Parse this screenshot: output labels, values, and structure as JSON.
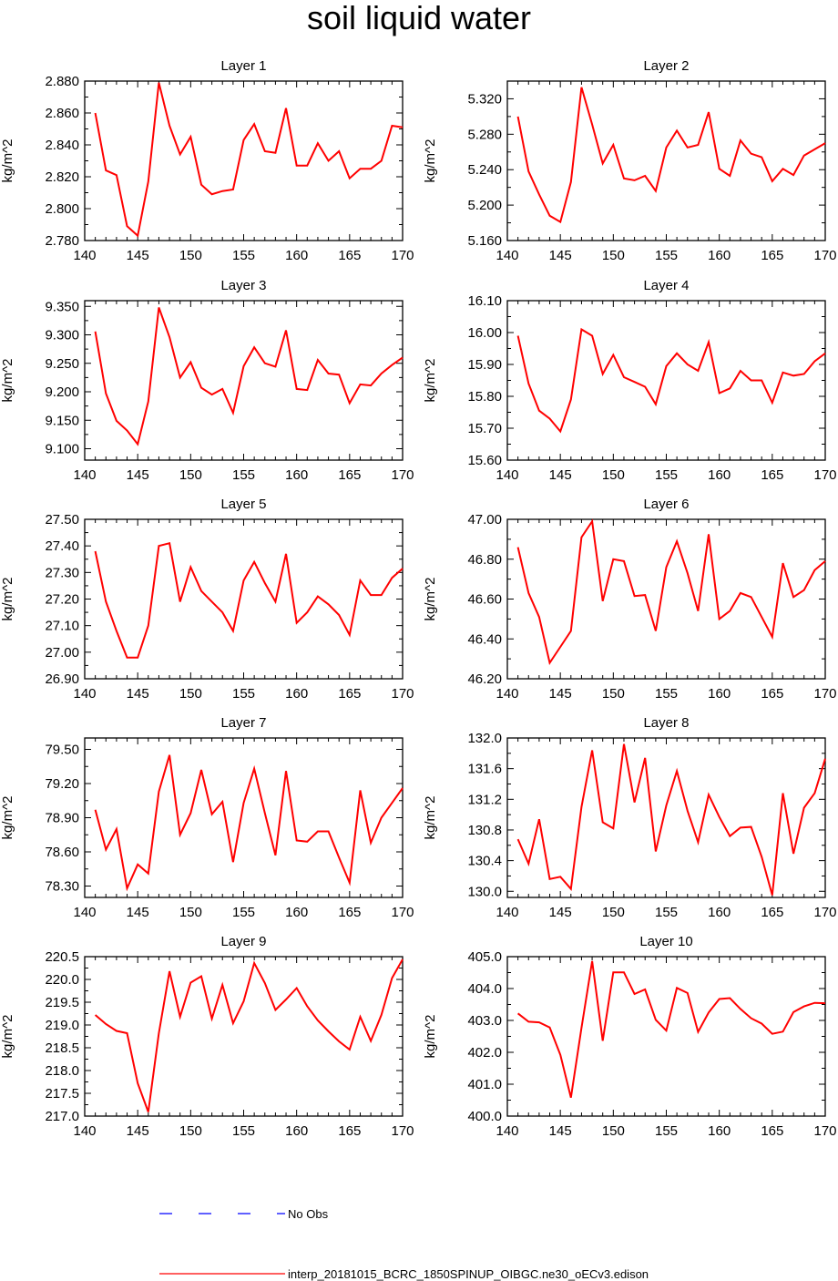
{
  "title": "soil liquid water",
  "colors": {
    "model": "#ff0000",
    "obs": "#0000ff",
    "axis": "#000000"
  },
  "legend": {
    "obs_label": "No Obs",
    "model_label": "interp_20181015_BCRC_1850SPINUP_OIBGC.ne30_oECv3.edison"
  },
  "chart_data": [
    {
      "type": "line",
      "title": "Layer 1",
      "xlabel": "",
      "ylabel": "kg/m^2",
      "xlim": [
        140,
        170
      ],
      "ylim": [
        2.78,
        2.88
      ],
      "xticks": [
        140,
        145,
        150,
        155,
        160,
        165,
        170
      ],
      "yticks": [
        2.78,
        2.8,
        2.82,
        2.84,
        2.86,
        2.88
      ],
      "ytick_labels": [
        "2.780",
        "2.800",
        "2.820",
        "2.840",
        "2.860",
        "2.880"
      ],
      "x": [
        141,
        142,
        143,
        144,
        145,
        146,
        147,
        148,
        149,
        150,
        151,
        152,
        153,
        154,
        155,
        156,
        157,
        158,
        159,
        160,
        161,
        162,
        163,
        164,
        165,
        166,
        167,
        168,
        169,
        170
      ],
      "series": [
        {
          "values": [
            2.86,
            2.824,
            2.821,
            2.789,
            2.783,
            2.817,
            2.879,
            2.852,
            2.834,
            2.845,
            2.815,
            2.809,
            2.811,
            2.812,
            2.843,
            2.853,
            2.836,
            2.835,
            2.863,
            2.827,
            2.827,
            2.841,
            2.83,
            2.836,
            2.819,
            2.825,
            2.825,
            2.83,
            2.852,
            2.851
          ]
        }
      ]
    },
    {
      "type": "line",
      "title": "Layer 2",
      "xlabel": "",
      "ylabel": "kg/m^2",
      "xlim": [
        140,
        170
      ],
      "ylim": [
        5.16,
        5.34
      ],
      "xticks": [
        140,
        145,
        150,
        155,
        160,
        165,
        170
      ],
      "yticks": [
        5.16,
        5.2,
        5.24,
        5.28,
        5.32
      ],
      "ytick_labels": [
        "5.160",
        "5.200",
        "5.240",
        "5.280",
        "5.320"
      ],
      "x": [
        141,
        142,
        143,
        144,
        145,
        146,
        147,
        148,
        149,
        150,
        151,
        152,
        153,
        154,
        155,
        156,
        157,
        158,
        159,
        160,
        161,
        162,
        163,
        164,
        165,
        166,
        167,
        168,
        169,
        170
      ],
      "series": [
        {
          "values": [
            5.3,
            5.238,
            5.212,
            5.188,
            5.181,
            5.226,
            5.333,
            5.291,
            5.247,
            5.268,
            5.23,
            5.228,
            5.233,
            5.216,
            5.265,
            5.284,
            5.265,
            5.268,
            5.305,
            5.241,
            5.233,
            5.273,
            5.258,
            5.254,
            5.227,
            5.241,
            5.234,
            5.256,
            5.263,
            5.27
          ]
        }
      ]
    },
    {
      "type": "line",
      "title": "Layer 3",
      "xlabel": "",
      "ylabel": "kg/m^2",
      "xlim": [
        140,
        170
      ],
      "ylim": [
        9.08,
        9.36
      ],
      "xticks": [
        140,
        145,
        150,
        155,
        160,
        165,
        170
      ],
      "yticks": [
        9.1,
        9.15,
        9.2,
        9.25,
        9.3,
        9.35
      ],
      "ytick_labels": [
        "9.100",
        "9.150",
        "9.200",
        "9.250",
        "9.300",
        "9.350"
      ],
      "x": [
        141,
        142,
        143,
        144,
        145,
        146,
        147,
        148,
        149,
        150,
        151,
        152,
        153,
        154,
        155,
        156,
        157,
        158,
        159,
        160,
        161,
        162,
        163,
        164,
        165,
        166,
        167,
        168,
        169,
        170
      ],
      "series": [
        {
          "values": [
            9.306,
            9.197,
            9.149,
            9.132,
            9.108,
            9.183,
            9.348,
            9.296,
            9.225,
            9.252,
            9.207,
            9.195,
            9.205,
            9.163,
            9.245,
            9.278,
            9.25,
            9.244,
            9.308,
            9.205,
            9.203,
            9.256,
            9.232,
            9.23,
            9.18,
            9.213,
            9.211,
            9.232,
            9.247,
            9.26
          ]
        }
      ]
    },
    {
      "type": "line",
      "title": "Layer 4",
      "xlabel": "",
      "ylabel": "kg/m^2",
      "xlim": [
        140,
        170
      ],
      "ylim": [
        15.6,
        16.1
      ],
      "xticks": [
        140,
        145,
        150,
        155,
        160,
        165,
        170
      ],
      "yticks": [
        15.6,
        15.7,
        15.8,
        15.9,
        16.0,
        16.1
      ],
      "ytick_labels": [
        "15.60",
        "15.70",
        "15.80",
        "15.90",
        "16.00",
        "16.10"
      ],
      "x": [
        141,
        142,
        143,
        144,
        145,
        146,
        147,
        148,
        149,
        150,
        151,
        152,
        153,
        154,
        155,
        156,
        157,
        158,
        159,
        160,
        161,
        162,
        163,
        164,
        165,
        166,
        167,
        168,
        169,
        170
      ],
      "series": [
        {
          "values": [
            15.99,
            15.84,
            15.755,
            15.73,
            15.69,
            15.79,
            16.01,
            15.99,
            15.87,
            15.93,
            15.86,
            15.845,
            15.83,
            15.775,
            15.895,
            15.935,
            15.9,
            15.88,
            15.97,
            15.81,
            15.825,
            15.88,
            15.85,
            15.85,
            15.78,
            15.875,
            15.865,
            15.87,
            15.91,
            15.935
          ]
        }
      ]
    },
    {
      "type": "line",
      "title": "Layer 5",
      "xlabel": "",
      "ylabel": "kg/m^2",
      "xlim": [
        140,
        170
      ],
      "ylim": [
        26.9,
        27.5
      ],
      "xticks": [
        140,
        145,
        150,
        155,
        160,
        165,
        170
      ],
      "yticks": [
        26.9,
        27.0,
        27.1,
        27.2,
        27.3,
        27.4,
        27.5
      ],
      "ytick_labels": [
        "26.90",
        "27.00",
        "27.10",
        "27.20",
        "27.30",
        "27.40",
        "27.50"
      ],
      "x": [
        141,
        142,
        143,
        144,
        145,
        146,
        147,
        148,
        149,
        150,
        151,
        152,
        153,
        154,
        155,
        156,
        157,
        158,
        159,
        160,
        161,
        162,
        163,
        164,
        165,
        166,
        167,
        168,
        169,
        170
      ],
      "series": [
        {
          "values": [
            27.38,
            27.19,
            27.08,
            26.98,
            26.98,
            27.1,
            27.4,
            27.41,
            27.19,
            27.32,
            27.23,
            27.19,
            27.15,
            27.08,
            27.27,
            27.34,
            27.26,
            27.19,
            27.37,
            27.11,
            27.15,
            27.21,
            27.18,
            27.14,
            27.065,
            27.27,
            27.215,
            27.215,
            27.28,
            27.315
          ]
        }
      ]
    },
    {
      "type": "line",
      "title": "Layer 6",
      "xlabel": "",
      "ylabel": "kg/m^2",
      "xlim": [
        140,
        170
      ],
      "ylim": [
        46.2,
        47.0
      ],
      "xticks": [
        140,
        145,
        150,
        155,
        160,
        165,
        170
      ],
      "yticks": [
        46.2,
        46.4,
        46.6,
        46.8,
        47.0
      ],
      "ytick_labels": [
        "46.20",
        "46.40",
        "46.60",
        "46.80",
        "47.00"
      ],
      "x": [
        141,
        142,
        143,
        144,
        145,
        146,
        147,
        148,
        149,
        150,
        151,
        152,
        153,
        154,
        155,
        156,
        157,
        158,
        159,
        160,
        161,
        162,
        163,
        164,
        165,
        166,
        167,
        168,
        169,
        170
      ],
      "series": [
        {
          "values": [
            46.86,
            46.63,
            46.51,
            46.28,
            46.36,
            46.44,
            46.91,
            46.99,
            46.59,
            46.8,
            46.79,
            46.615,
            46.62,
            46.44,
            46.76,
            46.89,
            46.73,
            46.54,
            46.925,
            46.5,
            46.54,
            46.63,
            46.61,
            46.51,
            46.41,
            46.78,
            46.61,
            46.645,
            46.745,
            46.79
          ]
        }
      ]
    },
    {
      "type": "line",
      "title": "Layer 7",
      "xlabel": "",
      "ylabel": "kg/m^2",
      "xlim": [
        140,
        170
      ],
      "ylim": [
        78.2,
        79.6
      ],
      "xticks": [
        140,
        145,
        150,
        155,
        160,
        165,
        170
      ],
      "yticks": [
        78.3,
        78.6,
        78.9,
        79.2,
        79.5
      ],
      "ytick_labels": [
        "78.30",
        "78.60",
        "78.90",
        "79.20",
        "79.50"
      ],
      "x": [
        141,
        142,
        143,
        144,
        145,
        146,
        147,
        148,
        149,
        150,
        151,
        152,
        153,
        154,
        155,
        156,
        157,
        158,
        159,
        160,
        161,
        162,
        163,
        164,
        165,
        166,
        167,
        168,
        169,
        170
      ],
      "series": [
        {
          "values": [
            78.97,
            78.62,
            78.8,
            78.28,
            78.49,
            78.41,
            79.13,
            79.45,
            78.75,
            78.94,
            79.32,
            78.93,
            79.04,
            78.51,
            79.03,
            79.33,
            78.94,
            78.57,
            79.31,
            78.7,
            78.69,
            78.78,
            78.78,
            78.55,
            78.33,
            79.14,
            78.68,
            78.9,
            79.03,
            79.16
          ]
        }
      ]
    },
    {
      "type": "line",
      "title": "Layer 8",
      "xlabel": "",
      "ylabel": "kg/m^2",
      "xlim": [
        140,
        170
      ],
      "ylim": [
        129.92,
        132.0
      ],
      "xticks": [
        140,
        145,
        150,
        155,
        160,
        165,
        170
      ],
      "yticks": [
        130.0,
        130.4,
        130.8,
        131.2,
        131.6,
        132.0
      ],
      "ytick_labels": [
        "130.0",
        "130.4",
        "130.8",
        "131.2",
        "131.6",
        "132.0"
      ],
      "x": [
        141,
        142,
        143,
        144,
        145,
        146,
        147,
        148,
        149,
        150,
        151,
        152,
        153,
        154,
        155,
        156,
        157,
        158,
        159,
        160,
        161,
        162,
        163,
        164,
        165,
        166,
        167,
        168,
        169,
        170
      ],
      "series": [
        {
          "values": [
            130.68,
            130.36,
            130.94,
            130.16,
            130.19,
            130.03,
            131.1,
            131.84,
            130.9,
            130.82,
            131.92,
            131.16,
            131.74,
            130.52,
            131.12,
            131.57,
            131.05,
            130.64,
            131.26,
            130.97,
            130.72,
            130.83,
            130.84,
            130.45,
            129.95,
            131.28,
            130.49,
            131.09,
            131.28,
            131.73
          ]
        }
      ]
    },
    {
      "type": "line",
      "title": "Layer 9",
      "xlabel": "",
      "ylabel": "kg/m^2",
      "xlim": [
        140,
        170
      ],
      "ylim": [
        217.0,
        220.5
      ],
      "xticks": [
        140,
        145,
        150,
        155,
        160,
        165,
        170
      ],
      "yticks": [
        217.0,
        217.5,
        218.0,
        218.5,
        219.0,
        219.5,
        220.0,
        220.5
      ],
      "ytick_labels": [
        "217.0",
        "217.5",
        "218.0",
        "218.5",
        "219.0",
        "219.5",
        "220.0",
        "220.5"
      ],
      "x": [
        141,
        142,
        143,
        144,
        145,
        146,
        147,
        148,
        149,
        150,
        151,
        152,
        153,
        154,
        155,
        156,
        157,
        158,
        159,
        160,
        161,
        162,
        163,
        164,
        165,
        166,
        167,
        168,
        169,
        170
      ],
      "series": [
        {
          "values": [
            219.22,
            219.02,
            218.87,
            218.82,
            217.72,
            217.09,
            218.82,
            220.18,
            219.18,
            219.93,
            220.07,
            219.14,
            219.88,
            219.04,
            219.52,
            220.36,
            219.92,
            219.33,
            219.56,
            219.81,
            219.41,
            219.1,
            218.86,
            218.64,
            218.46,
            219.18,
            218.65,
            219.22,
            220.03,
            220.44
          ]
        }
      ]
    },
    {
      "type": "line",
      "title": "Layer 10",
      "xlabel": "",
      "ylabel": "kg/m^2",
      "xlim": [
        140,
        170
      ],
      "ylim": [
        400.0,
        405.0
      ],
      "xticks": [
        140,
        145,
        150,
        155,
        160,
        165,
        170
      ],
      "yticks": [
        400.0,
        401.0,
        402.0,
        403.0,
        404.0,
        405.0
      ],
      "ytick_labels": [
        "400.0",
        "401.0",
        "402.0",
        "403.0",
        "404.0",
        "405.0"
      ],
      "x": [
        141,
        142,
        143,
        144,
        145,
        146,
        147,
        148,
        149,
        150,
        151,
        152,
        153,
        154,
        155,
        156,
        157,
        158,
        159,
        160,
        161,
        162,
        163,
        164,
        165,
        166,
        167,
        168,
        169,
        170
      ],
      "series": [
        {
          "values": [
            403.22,
            402.96,
            402.94,
            402.78,
            401.92,
            400.58,
            402.77,
            404.86,
            402.36,
            404.51,
            404.51,
            403.83,
            403.97,
            403.02,
            402.68,
            404.02,
            403.86,
            402.64,
            403.25,
            403.67,
            403.7,
            403.36,
            403.07,
            402.9,
            402.58,
            402.65,
            403.26,
            403.44,
            403.55,
            403.54
          ]
        }
      ]
    }
  ]
}
